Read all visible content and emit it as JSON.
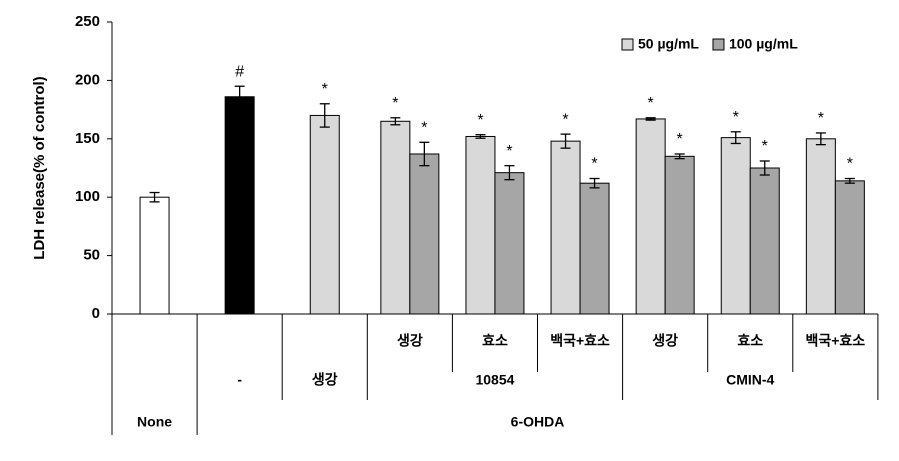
{
  "chart_data": {
    "type": "bar",
    "y_label": "LDH release(% of control)",
    "ylim": [
      0,
      250
    ],
    "yticks": [
      0,
      50,
      100,
      150,
      200,
      250
    ],
    "groups": [
      {
        "label": "None",
        "subgroups": [
          {
            "label": null,
            "columns": [
              null
            ]
          }
        ]
      },
      {
        "label": "6-OHDA",
        "subgroups": [
          {
            "label": "-",
            "columns": [
              null
            ]
          },
          {
            "label": "생강",
            "columns": [
              null
            ]
          },
          {
            "label": "10854",
            "columns": [
              "생강",
              "효소",
              "백국+효소"
            ]
          },
          {
            "label": "CMIN-4",
            "columns": [
              "생강",
              "효소",
              "백국+효소"
            ]
          }
        ]
      }
    ],
    "series": [
      {
        "color": "#ffffff",
        "values": [
          100,
          null,
          null,
          null,
          null,
          null,
          null,
          null,
          null
        ],
        "errors": [
          4,
          null,
          null,
          null,
          null,
          null,
          null,
          null,
          null
        ],
        "markers": [
          null,
          null,
          null,
          null,
          null,
          null,
          null,
          null,
          null
        ]
      },
      {
        "color": "#000000",
        "values": [
          null,
          186,
          null,
          null,
          null,
          null,
          null,
          null,
          null
        ],
        "errors": [
          null,
          9,
          null,
          null,
          null,
          null,
          null,
          null,
          null
        ],
        "markers": [
          null,
          "#",
          null,
          null,
          null,
          null,
          null,
          null,
          null
        ]
      },
      {
        "name": "50 µg/mL",
        "color": "#d9d9d9",
        "values": [
          null,
          null,
          170,
          165,
          152,
          148,
          167,
          151,
          150
        ],
        "errors": [
          null,
          null,
          10,
          3,
          1.5,
          6,
          1,
          5,
          5
        ],
        "markers": [
          null,
          null,
          "*",
          "*",
          "*",
          "*",
          "*",
          "*",
          "*"
        ]
      },
      {
        "name": "100 µg/mL",
        "color": "#a6a6a6",
        "values": [
          null,
          null,
          null,
          137,
          121,
          112,
          135,
          125,
          114
        ],
        "errors": [
          null,
          null,
          null,
          10,
          6,
          4,
          2,
          6,
          2
        ],
        "markers": [
          null,
          null,
          null,
          "*",
          "*",
          "*",
          "*",
          "*",
          "*"
        ]
      }
    ]
  }
}
